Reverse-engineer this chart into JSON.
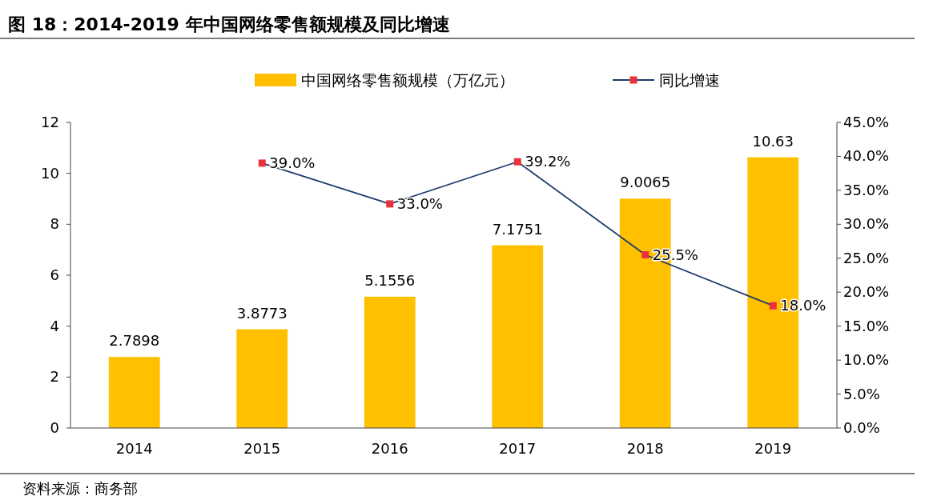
{
  "chart_data": {
    "type": "bar",
    "title": "图 18：2014-2019 年中国网络零售额规模及同比增速",
    "categories": [
      "2014",
      "2015",
      "2016",
      "2017",
      "2018",
      "2019"
    ],
    "series": [
      {
        "name": "中国网络零售额规模（万亿元）",
        "color": "#ffc000",
        "values": [
          2.7898,
          3.8773,
          5.1556,
          7.1751,
          9.0065,
          10.63
        ],
        "value_labels": [
          "2.7898",
          "3.8773",
          "5.1556",
          "7.1751",
          "9.0065",
          "10.63"
        ]
      },
      {
        "name": "同比增速",
        "type": "line",
        "axis": "y2",
        "color": "#1f3a6e",
        "values": [
          null,
          39.0,
          33.0,
          39.2,
          25.5,
          18.0
        ],
        "value_labels": [
          null,
          "39.0%",
          "33.0%",
          "39.2%",
          "25.5%",
          "18.0%"
        ]
      }
    ],
    "ylim": [
      0,
      12
    ],
    "yticks": [
      0,
      2,
      4,
      6,
      8,
      10,
      12
    ],
    "y2lim": [
      0,
      45
    ],
    "y2ticks": [
      {
        "value": 0,
        "label": "0.0%"
      },
      {
        "value": 5,
        "label": "5.0%"
      },
      {
        "value": 10,
        "label": "10.0%"
      },
      {
        "value": 15,
        "label": "15.0%"
      },
      {
        "value": 20,
        "label": "20.0%"
      },
      {
        "value": 25,
        "label": "25.0%"
      },
      {
        "value": 30,
        "label": "30.0%"
      },
      {
        "value": 35,
        "label": "35.0%"
      },
      {
        "value": 40,
        "label": "40.0%"
      },
      {
        "value": 45,
        "label": "45.0%"
      }
    ],
    "marker": "square",
    "legend": "top",
    "grid": false,
    "annotations": [
      "资料来源：商务部"
    ]
  }
}
